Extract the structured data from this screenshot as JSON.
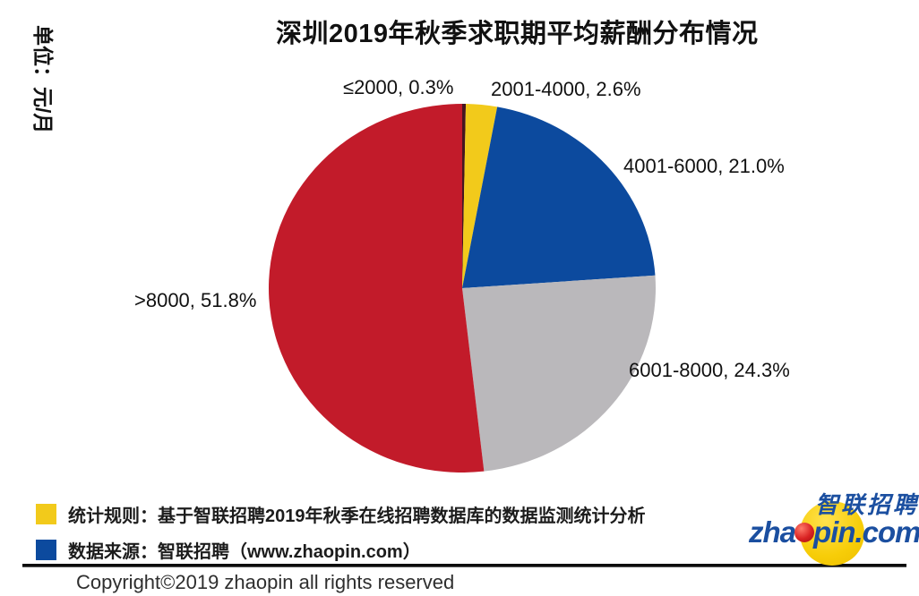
{
  "title": "深圳2019年秋季求职期平均薪酬分布情况",
  "unit_label": "单位：元/月",
  "chart_data": {
    "type": "pie",
    "title": "深圳2019年秋季求职期平均薪酬分布情况",
    "unit": "元/月",
    "categories": [
      "≤2000",
      "2001-4000",
      "4001-6000",
      "6001-8000",
      ">8000"
    ],
    "values": [
      0.3,
      2.6,
      21.0,
      24.3,
      51.8
    ],
    "colors": [
      "#451520",
      "#F2CA1B",
      "#0C4A9E",
      "#BAB8BB",
      "#C21B2A"
    ],
    "start_angle": "top",
    "direction": "clockwise",
    "annotations": [
      "≤2000, 0.3%",
      "2001-4000, 2.6%",
      "4001-6000, 21.0%",
      "6001-8000, 24.3%",
      ">8000, 51.8%"
    ]
  },
  "legend": {
    "items": [
      {
        "color": "#F2CA1B",
        "text": "统计规则：基于智联招聘2019年秋季在线招聘数据库的数据监测统计分析"
      },
      {
        "color": "#0C4A9E",
        "text": "数据来源：智联招聘（www.zhaopin.com）"
      }
    ]
  },
  "footer": {
    "copyright": "Copyright©2019 zhaopin all rights reserved"
  },
  "logo": {
    "brand_cn": "智联招聘",
    "url_left": "zha",
    "url_right": "pin.com"
  }
}
